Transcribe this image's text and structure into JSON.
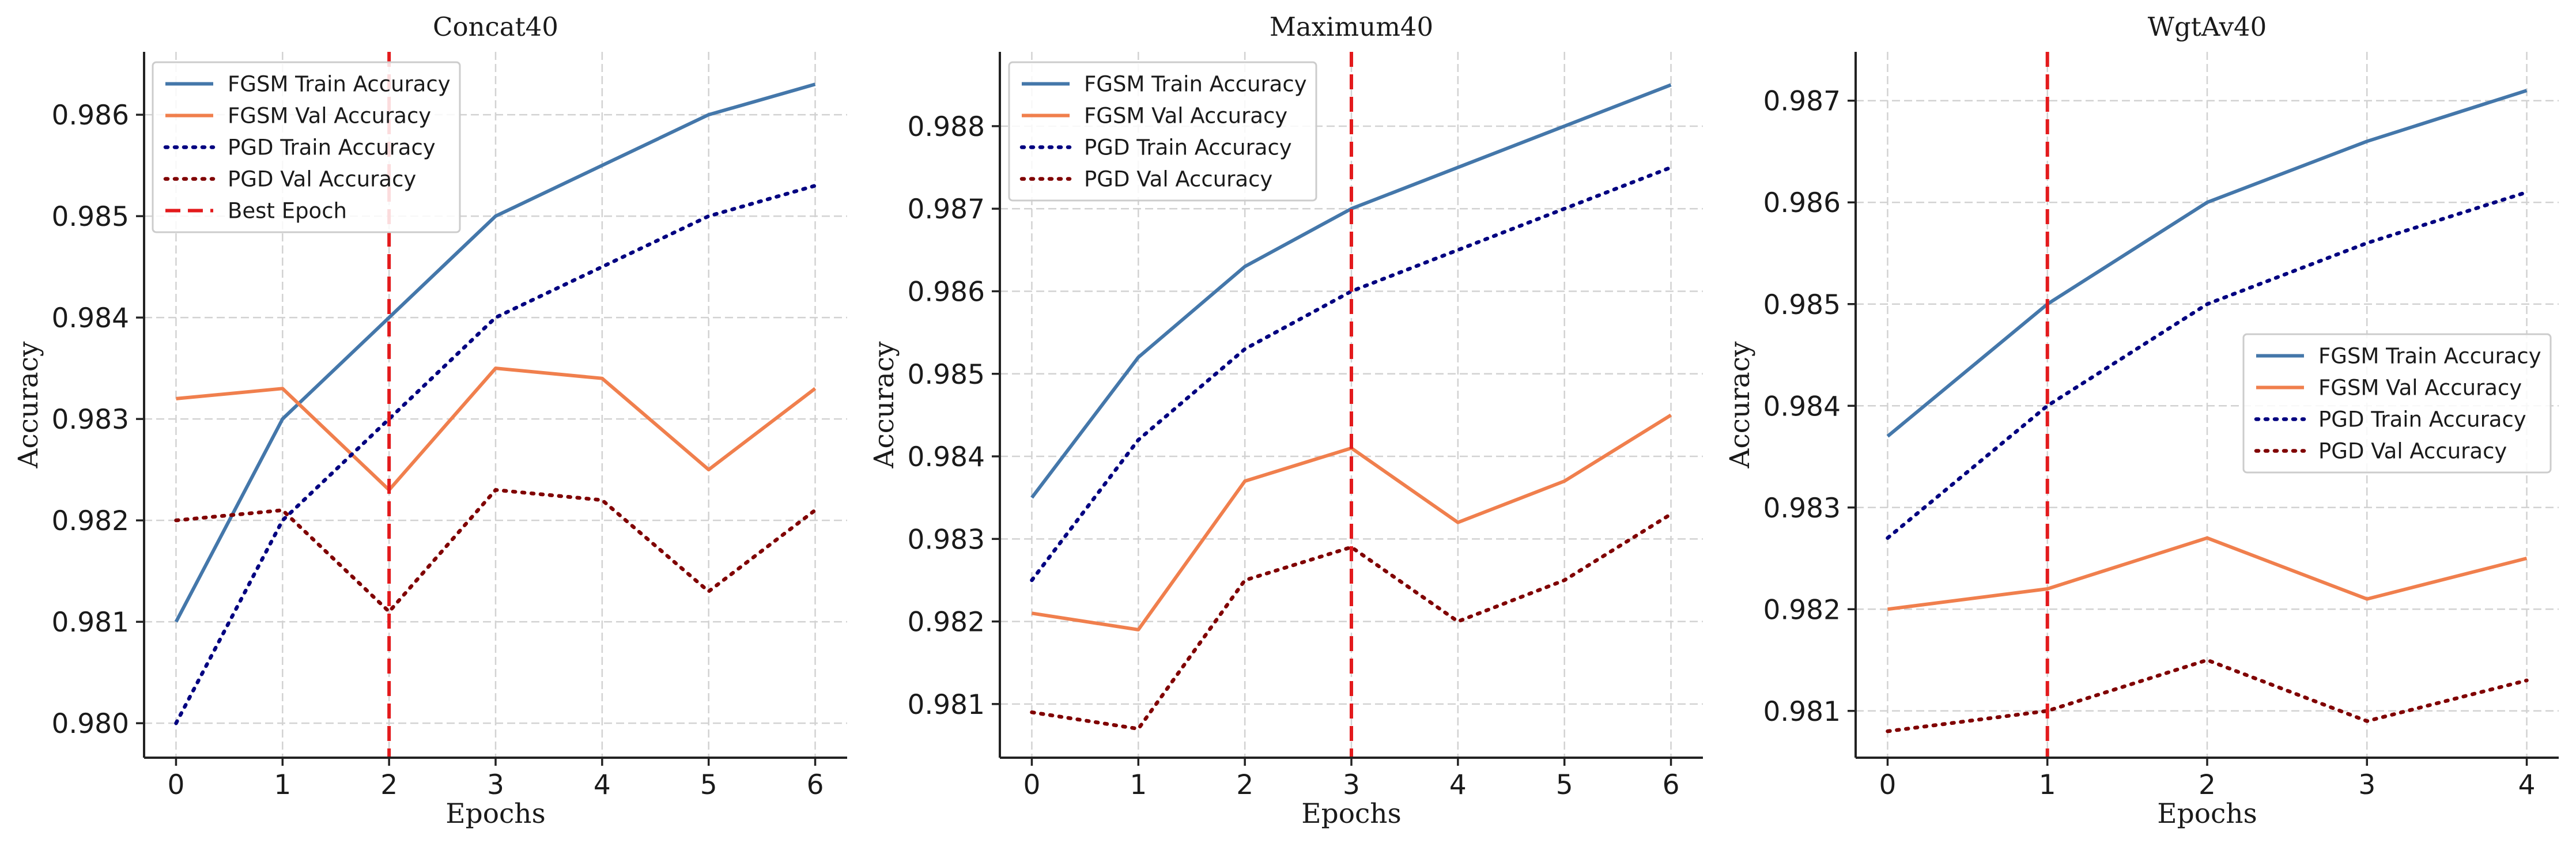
{
  "chart_data": [
    {
      "type": "line",
      "title": "Concat40",
      "xlabel": "Epochs",
      "ylabel": "Accuracy",
      "x": [
        0,
        1,
        2,
        3,
        4,
        5,
        6
      ],
      "xlim": [
        -0.3,
        6.3
      ],
      "ylim": [
        0.97966,
        0.98662
      ],
      "xticks": [
        "0",
        "1",
        "2",
        "3",
        "4",
        "5",
        "6"
      ],
      "yticks": [
        "0.980",
        "0.981",
        "0.982",
        "0.983",
        "0.984",
        "0.985",
        "0.986"
      ],
      "grid": true,
      "legend_position": "top-left",
      "best_epoch": 2,
      "series": [
        {
          "name": "FGSM Train Accuracy",
          "color": "#4477aa",
          "style": "solid",
          "values": [
            0.981,
            0.983,
            0.984,
            0.985,
            0.9855,
            0.986,
            0.9863
          ]
        },
        {
          "name": "FGSM Val Accuracy",
          "color": "#f07f4d",
          "style": "solid",
          "values": [
            0.9832,
            0.9833,
            0.9823,
            0.9835,
            0.9834,
            0.9825,
            0.9833
          ]
        },
        {
          "name": "PGD Train Accuracy",
          "color": "#000080",
          "style": "dotted",
          "values": [
            0.98,
            0.982,
            0.983,
            0.984,
            0.9845,
            0.985,
            0.9853
          ]
        },
        {
          "name": "PGD Val Accuracy",
          "color": "#800000",
          "style": "dotted",
          "values": [
            0.982,
            0.9821,
            0.9811,
            0.9823,
            0.9822,
            0.9813,
            0.9821
          ]
        },
        {
          "name": "Best Epoch",
          "color": "#e31a1c",
          "style": "dashed",
          "vline_x": 2
        }
      ]
    },
    {
      "type": "line",
      "title": "Maximum40",
      "xlabel": "Epochs",
      "ylabel": "Accuracy",
      "x": [
        0,
        1,
        2,
        3,
        4,
        5,
        6
      ],
      "xlim": [
        -0.3,
        6.3
      ],
      "ylim": [
        0.98035,
        0.9889
      ],
      "xticks": [
        "0",
        "1",
        "2",
        "3",
        "4",
        "5",
        "6"
      ],
      "yticks": [
        "0.981",
        "0.982",
        "0.983",
        "0.984",
        "0.985",
        "0.986",
        "0.987",
        "0.988"
      ],
      "grid": true,
      "legend_position": "top-left",
      "best_epoch": 3,
      "series": [
        {
          "name": "FGSM Train Accuracy",
          "color": "#4477aa",
          "style": "solid",
          "values": [
            0.9835,
            0.9852,
            0.9863,
            0.987,
            0.9875,
            0.988,
            0.9885
          ]
        },
        {
          "name": "FGSM Val Accuracy",
          "color": "#f07f4d",
          "style": "solid",
          "values": [
            0.9821,
            0.9819,
            0.9837,
            0.9841,
            0.9832,
            0.9837,
            0.9845
          ]
        },
        {
          "name": "PGD Train Accuracy",
          "color": "#000080",
          "style": "dotted",
          "values": [
            0.9825,
            0.9842,
            0.9853,
            0.986,
            0.9865,
            0.987,
            0.9875
          ]
        },
        {
          "name": "PGD Val Accuracy",
          "color": "#800000",
          "style": "dotted",
          "values": [
            0.9809,
            0.9807,
            0.9825,
            0.9829,
            0.982,
            0.9825,
            0.9833
          ]
        }
      ]
    },
    {
      "type": "line",
      "title": "WgtAv40",
      "xlabel": "Epochs",
      "ylabel": "Accuracy",
      "x": [
        0,
        1,
        2,
        3,
        4
      ],
      "xlim": [
        -0.2,
        4.2
      ],
      "ylim": [
        0.98054,
        0.98748
      ],
      "xticks": [
        "0",
        "1",
        "2",
        "3",
        "4"
      ],
      "yticks": [
        "0.981",
        "0.982",
        "0.983",
        "0.984",
        "0.985",
        "0.986",
        "0.987"
      ],
      "grid": true,
      "legend_position": "center-right",
      "best_epoch": 1,
      "series": [
        {
          "name": "FGSM Train Accuracy",
          "color": "#4477aa",
          "style": "solid",
          "values": [
            0.9837,
            0.985,
            0.986,
            0.9866,
            0.9871
          ]
        },
        {
          "name": "FGSM Val Accuracy",
          "color": "#f07f4d",
          "style": "solid",
          "values": [
            0.982,
            0.9822,
            0.9827,
            0.9821,
            0.9825
          ]
        },
        {
          "name": "PGD Train Accuracy",
          "color": "#000080",
          "style": "dotted",
          "values": [
            0.9827,
            0.984,
            0.985,
            0.9856,
            0.9861
          ]
        },
        {
          "name": "PGD Val Accuracy",
          "color": "#800000",
          "style": "dotted",
          "values": [
            0.9808,
            0.981,
            0.9815,
            0.9809,
            0.9813
          ]
        }
      ]
    }
  ]
}
